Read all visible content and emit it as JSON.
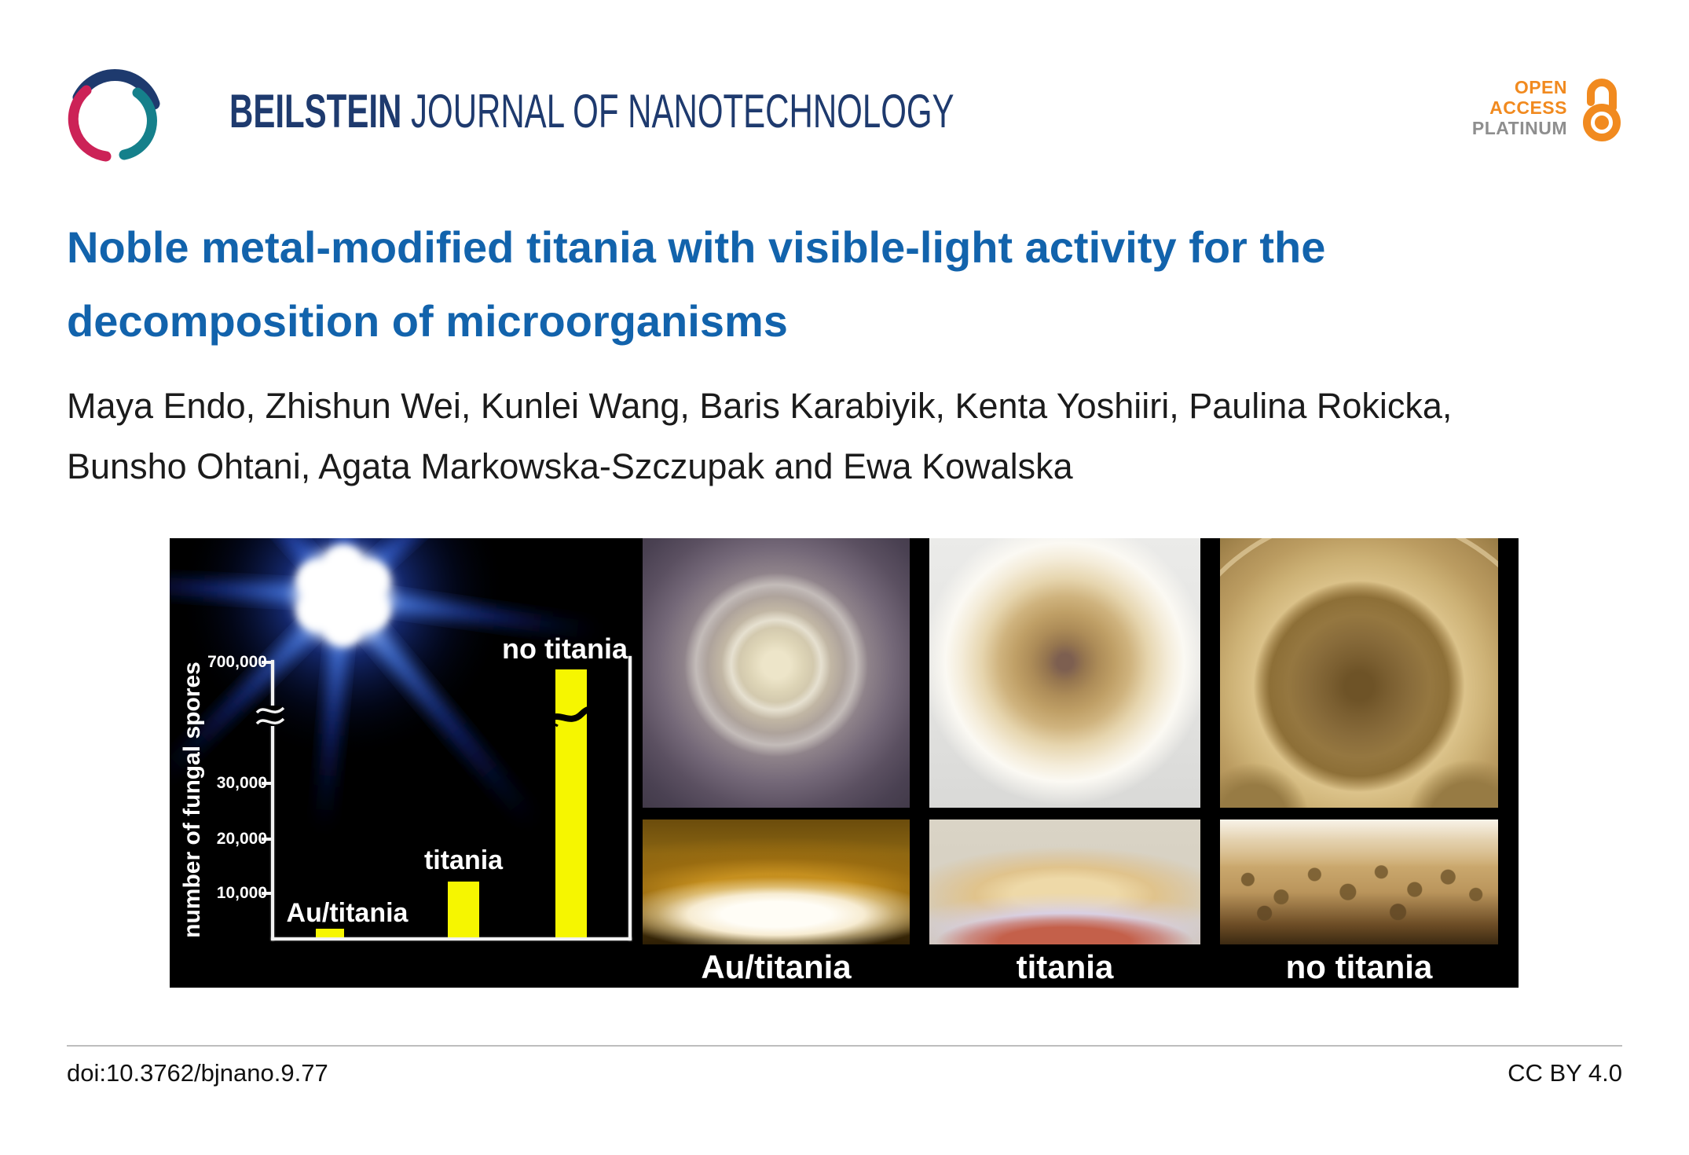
{
  "brand": {
    "journal_name_bold": "BEILSTEIN",
    "journal_name_rest": " JOURNAL OF NANOTECHNOLOGY",
    "open_access_line1": "OPEN",
    "open_access_line2": "ACCESS",
    "open_access_line3": "PLATINUM"
  },
  "article": {
    "title": "Noble metal-modified titania with visible-light activity for the decomposition of microorganisms",
    "title_lines": [
      "Noble metal-modified titania with visible-light activity for the",
      "decomposition of microorganisms"
    ],
    "authors": "Maya Endo, Zhishun Wei, Kunlei Wang, Baris Karabiyik, Kenta Yoshiiri, Paulina Rokicka, Bunsho Ohtani, Agata Markowska-Szczupak and Ewa Kowalska",
    "authors_lines": [
      "Maya Endo, Zhishun Wei, Kunlei Wang, Baris Karabiyik, Kenta Yoshiiri, Paulina Rokicka,",
      "Bunsho Ohtani, Agata Markowska-Szczupak and Ewa Kowalska"
    ]
  },
  "chart_data": {
    "type": "bar",
    "title": "",
    "xlabel": "",
    "ylabel": "number of fungal spores",
    "categories": [
      "Au/titania",
      "titania",
      "no titania"
    ],
    "values": [
      1500,
      10000,
      700000
    ],
    "ytick_labels": [
      "10,000",
      "20,000",
      "30,000",
      "700,000"
    ],
    "ytick_values": [
      10000,
      20000,
      30000,
      700000
    ],
    "axis_break": true,
    "axis_break_note": "y-axis break between 30,000 and 700,000; the no-titania bar carries a break mark",
    "bar_color": "#f6f600",
    "grid": false,
    "legend": "none"
  },
  "figure": {
    "column_labels": [
      "Au/titania",
      "titania",
      "no titania"
    ],
    "rows": [
      "fungal colony top view",
      "fungal colony side view"
    ]
  },
  "footer": {
    "doi": "doi:10.3762/bjnano.9.77",
    "license": "CC BY 4.0"
  },
  "colors": {
    "title_blue": "#1263ac",
    "navy": "#1e3a6e",
    "teal": "#15808b",
    "crimson": "#cc2257",
    "orange": "#f18a1f",
    "platinum_gray": "#8e8e8e",
    "bar_yellow": "#f6f600"
  }
}
